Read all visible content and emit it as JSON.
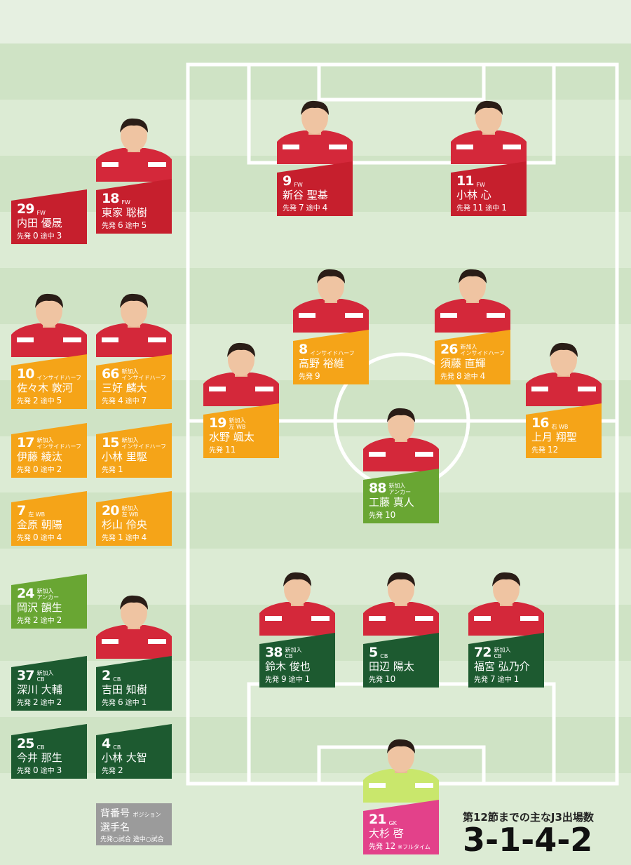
{
  "labels": {
    "starts": "先発",
    "subs": "途中"
  },
  "players": [
    {
      "number": 29,
      "position": "FW",
      "name": "内田 優晟",
      "starts": 0,
      "subs": 3
    },
    {
      "number": 18,
      "position": "FW",
      "name": "東家 聡樹",
      "starts": 6,
      "subs": 5
    },
    {
      "number": 9,
      "position": "FW",
      "name": "新谷 聖基",
      "starts": 7,
      "subs": 4
    },
    {
      "number": 11,
      "position": "FW",
      "name": "小林 心",
      "starts": 11,
      "subs": 1
    },
    {
      "number": 10,
      "position": "インサイドハーフ",
      "name": "佐々木 敦河",
      "starts": 2,
      "subs": 5
    },
    {
      "number": 66,
      "new": "新加入",
      "position": "インサイドハーフ",
      "name": "三好 麟大",
      "starts": 4,
      "subs": 7
    },
    {
      "number": 8,
      "position": "インサイドハーフ",
      "name": "高野 裕維",
      "starts": 9
    },
    {
      "number": 26,
      "new": "新加入",
      "position": "インサイドハーフ",
      "name": "須藤 直輝",
      "starts": 8,
      "subs": 4
    },
    {
      "number": 19,
      "new": "新加入",
      "position": "左 WB",
      "name": "水野 颯太",
      "starts": 11
    },
    {
      "number": 16,
      "position": "右 WB",
      "name": "上月 翔聖",
      "starts": 12
    },
    {
      "number": 17,
      "new": "新加入",
      "position": "インサイドハーフ",
      "name": "伊藤 綾汰",
      "starts": 0,
      "subs": 2
    },
    {
      "number": 15,
      "new": "新加入",
      "position": "インサイドハーフ",
      "name": "小林 里駆",
      "starts": 1
    },
    {
      "number": 7,
      "position": "左 WB",
      "name": "金原 朝陽",
      "starts": 0,
      "subs": 4
    },
    {
      "number": 20,
      "new": "新加入",
      "position": "左 WB",
      "name": "杉山 伶央",
      "starts": 1,
      "subs": 4
    },
    {
      "number": 88,
      "new": "新加入",
      "position": "アンカー",
      "name": "工藤 真人",
      "starts": 10
    },
    {
      "number": 24,
      "new": "新加入",
      "position": "アンカー",
      "name": "岡沢 韻生",
      "starts": 2,
      "subs": 2
    },
    {
      "number": 38,
      "new": "新加入",
      "position": "CB",
      "name": "鈴木 俊也",
      "starts": 9,
      "subs": 1
    },
    {
      "number": 5,
      "position": "CB",
      "name": "田辺 陽太",
      "starts": 10
    },
    {
      "number": 72,
      "new": "新加入",
      "position": "CB",
      "name": "福宮 弘乃介",
      "starts": 7,
      "subs": 1
    },
    {
      "number": 37,
      "new": "新加入",
      "position": "CB",
      "name": "深川 大輔",
      "starts": 2,
      "subs": 2
    },
    {
      "number": 2,
      "position": "CB",
      "name": "吉田 知樹",
      "starts": 6,
      "subs": 1
    },
    {
      "number": 25,
      "position": "CB",
      "name": "今井 那生",
      "starts": 0,
      "subs": 3
    },
    {
      "number": 4,
      "position": "CB",
      "name": "小林 大智",
      "starts": 2
    },
    {
      "number": 21,
      "position": "GK",
      "name": "大杉 啓",
      "starts": 12,
      "note": "※フルタイム"
    }
  ],
  "legend": {
    "number": "背番号",
    "position": "ポジション",
    "name": "選手名",
    "stats": "先発○試合 途中○試合"
  },
  "title": "第12節までの主なJ3出場数",
  "formation": "3-1-4-2"
}
